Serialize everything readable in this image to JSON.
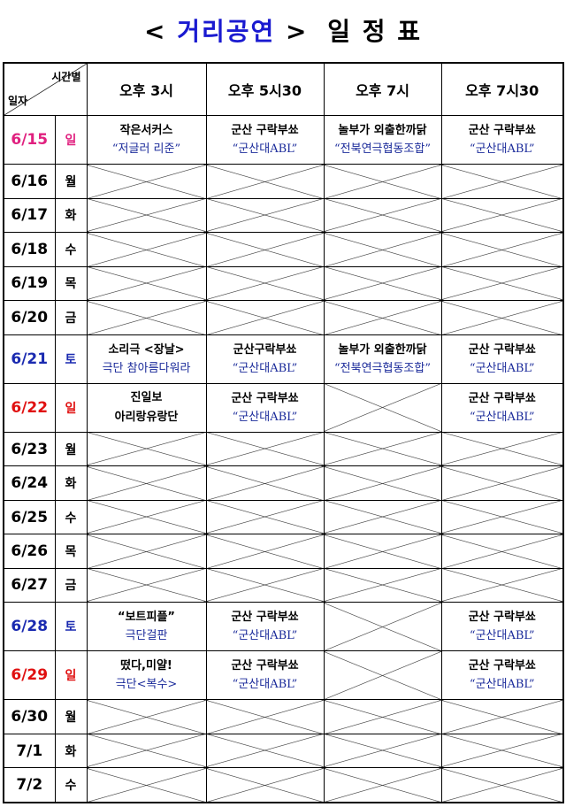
{
  "title": {
    "left": "<",
    "highlight": "거리공연",
    "right": ">",
    "suffix": "일 정 표"
  },
  "header": {
    "corner_top": "시간별",
    "corner_bottom": "일자",
    "times": [
      "오후 3시",
      "오후 5시30",
      "오후 7시",
      "오후 7시30"
    ]
  },
  "colors": {
    "sunday_first": "#e0207f",
    "sunday": "#e01010",
    "saturday": "#1a2ab0",
    "weekday": "#000000",
    "accent": "#1a1ad0"
  },
  "rows": [
    {
      "date": "6/15",
      "day": "일",
      "type": "sunday_first",
      "cells": [
        [
          "작은서커스",
          "“저글러 리준”"
        ],
        [
          "군산 구락부쑈",
          "“군산대ABL”"
        ],
        [
          "놀부가 외출한까닭",
          "“전북연극협동조합”"
        ],
        [
          "군산 구락부쑈",
          "“군산대ABL”"
        ]
      ]
    },
    {
      "date": "6/16",
      "day": "월",
      "type": "weekday",
      "cells": [
        null,
        null,
        null,
        null
      ]
    },
    {
      "date": "6/17",
      "day": "화",
      "type": "weekday",
      "cells": [
        null,
        null,
        null,
        null
      ]
    },
    {
      "date": "6/18",
      "day": "수",
      "type": "weekday",
      "cells": [
        null,
        null,
        null,
        null
      ]
    },
    {
      "date": "6/19",
      "day": "목",
      "type": "weekday",
      "cells": [
        null,
        null,
        null,
        null
      ]
    },
    {
      "date": "6/20",
      "day": "금",
      "type": "weekday",
      "cells": [
        null,
        null,
        null,
        null
      ]
    },
    {
      "date": "6/21",
      "day": "토",
      "type": "saturday",
      "cells": [
        [
          "소리극 <장날>",
          "극단 참아름다워라"
        ],
        [
          "군산구락부쑈",
          "“군산대ABL”"
        ],
        [
          "놀부가 외출한까닭",
          "“전북연극협동조합”"
        ],
        [
          "군산 구락부쑈",
          "“군산대ABL”"
        ]
      ]
    },
    {
      "date": "6/22",
      "day": "일",
      "type": "sunday",
      "cells": [
        [
          "진일보",
          "아리랑유랑단",
          true
        ],
        [
          "군산 구락부쑈",
          "“군산대ABL”"
        ],
        null,
        [
          "군산 구락부쑈",
          "“군산대ABL”"
        ]
      ]
    },
    {
      "date": "6/23",
      "day": "월",
      "type": "weekday",
      "cells": [
        null,
        null,
        null,
        null
      ]
    },
    {
      "date": "6/24",
      "day": "화",
      "type": "weekday",
      "cells": [
        null,
        null,
        null,
        null
      ]
    },
    {
      "date": "6/25",
      "day": "수",
      "type": "weekday",
      "cells": [
        null,
        null,
        null,
        null
      ]
    },
    {
      "date": "6/26",
      "day": "목",
      "type": "weekday",
      "cells": [
        null,
        null,
        null,
        null
      ]
    },
    {
      "date": "6/27",
      "day": "금",
      "type": "weekday",
      "cells": [
        null,
        null,
        null,
        null
      ]
    },
    {
      "date": "6/28",
      "day": "토",
      "type": "saturday",
      "cells": [
        [
          "“보트피플”",
          "극단걸판"
        ],
        [
          "군산 구락부쑈",
          "“군산대ABL”"
        ],
        null,
        [
          "군산 구락부쑈",
          "“군산대ABL”"
        ]
      ]
    },
    {
      "date": "6/29",
      "day": "일",
      "type": "sunday",
      "cells": [
        [
          "떴다,미얄!",
          "극단<복수>"
        ],
        [
          "군산 구락부쑈",
          "“군산대ABL”"
        ],
        null,
        [
          "군산 구락부쑈",
          "“군산대ABL”"
        ]
      ]
    },
    {
      "date": "6/30",
      "day": "월",
      "type": "weekday",
      "cells": [
        null,
        null,
        null,
        null
      ]
    },
    {
      "date": "7/1",
      "day": "화",
      "type": "weekday",
      "cells": [
        null,
        null,
        null,
        null
      ]
    },
    {
      "date": "7/2",
      "day": "수",
      "type": "weekday",
      "cells": [
        null,
        null,
        null,
        null
      ]
    }
  ]
}
